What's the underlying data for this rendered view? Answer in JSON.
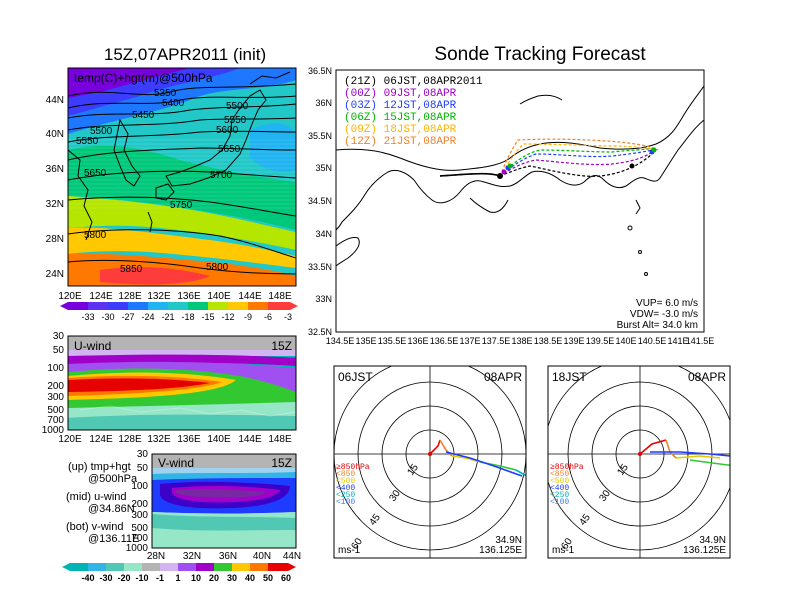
{
  "left": {
    "title": "15Z,07APR2011 (init)",
    "temp_panel": {
      "label": "temp(C)+hgt(m)@500hPa",
      "lat_ticks": [
        "44N",
        "40N",
        "36N",
        "32N",
        "28N",
        "24N"
      ],
      "lon_ticks": [
        "120E",
        "124E",
        "128E",
        "132E",
        "136E",
        "140E",
        "144E",
        "148E"
      ],
      "contour_labels": [
        "5350",
        "5400",
        "5450",
        "5500",
        "5550",
        "5600",
        "5650",
        "5700",
        "5750",
        "5800",
        "5850"
      ],
      "colorbar_ticks": [
        "-33",
        "-30",
        "-27",
        "-24",
        "-21",
        "-18",
        "-15",
        "-12",
        "-9",
        "-6",
        "-3"
      ]
    },
    "u_panel": {
      "label": "U-wind",
      "time": "15Z",
      "p_ticks": [
        "30",
        "50",
        "100",
        "200",
        "300",
        "500",
        "700",
        "1000"
      ],
      "lon_ticks": [
        "120E",
        "124E",
        "128E",
        "132E",
        "136E",
        "140E",
        "144E",
        "148E"
      ]
    },
    "v_panel": {
      "label": "V-wind",
      "time": "15Z",
      "p_ticks": [
        "30",
        "50",
        "100",
        "200",
        "300",
        "500",
        "700",
        "1000"
      ],
      "lat_ticks": [
        "28N",
        "32N",
        "36N",
        "40N",
        "44N"
      ]
    },
    "notes": [
      {
        "line1": "(up) tmp+hgt",
        "line2": "@500hPa"
      },
      {
        "line1": "(mid) u-wind",
        "line2": "@34.86N"
      },
      {
        "line1": "(bot) v-wind",
        "line2": "@136.11E"
      }
    ],
    "wind_colorbar_ticks": [
      "-40",
      "-30",
      "-20",
      "-10",
      "-1",
      "1",
      "10",
      "20",
      "30",
      "40",
      "50",
      "60"
    ]
  },
  "right": {
    "title": "Sonde Tracking Forecast",
    "legend": [
      {
        "text": "(21Z) 06JST,08APR2011",
        "color": "#000000"
      },
      {
        "text": "(00Z) 09JST,08APR",
        "color": "#a000c8"
      },
      {
        "text": "(03Z) 12JST,08APR",
        "color": "#1e3cff"
      },
      {
        "text": "(06Z) 15JST,08APR",
        "color": "#00b400"
      },
      {
        "text": "(09Z) 18JST,08APR",
        "color": "#ffb400"
      },
      {
        "text": "(12Z) 21JST,08APR",
        "color": "#f08228"
      }
    ],
    "lat_ticks": [
      "36.5N",
      "36N",
      "35.5N",
      "35N",
      "34.5N",
      "34N",
      "33.5N",
      "33N",
      "32.5N"
    ],
    "lon_ticks": [
      "134.5E",
      "135E",
      "135.5E",
      "136E",
      "136.5E",
      "137E",
      "137.5E",
      "138E",
      "138.5E",
      "139E",
      "139.5E",
      "140E",
      "140.5E",
      "141E",
      "141.5E"
    ],
    "params": [
      "VUP= 6.0 m/s",
      "VDW= -3.0 m/s",
      "Burst Alt= 34.0 km"
    ]
  },
  "hodographs": [
    {
      "time": "06JST",
      "date": "08APR",
      "lat": "34.9N",
      "lon": "136.125E",
      "unit": "ms-1"
    },
    {
      "time": "18JST",
      "date": "08APR",
      "lat": "34.9N",
      "lon": "136.125E",
      "unit": "ms-1"
    }
  ],
  "hodo_rings": [
    "15",
    "30",
    "45",
    "60"
  ],
  "hodo_legend": [
    {
      "text": "≥850hPa",
      "color": "#e60000"
    },
    {
      "text": "<850",
      "color": "#f08228"
    },
    {
      "text": "<500",
      "color": "#e6c800"
    },
    {
      "text": "<400",
      "color": "#1e3cff"
    },
    {
      "text": "<250",
      "color": "#00b4b4"
    },
    {
      "text": "<100",
      "color": "#3c78ff"
    }
  ]
}
